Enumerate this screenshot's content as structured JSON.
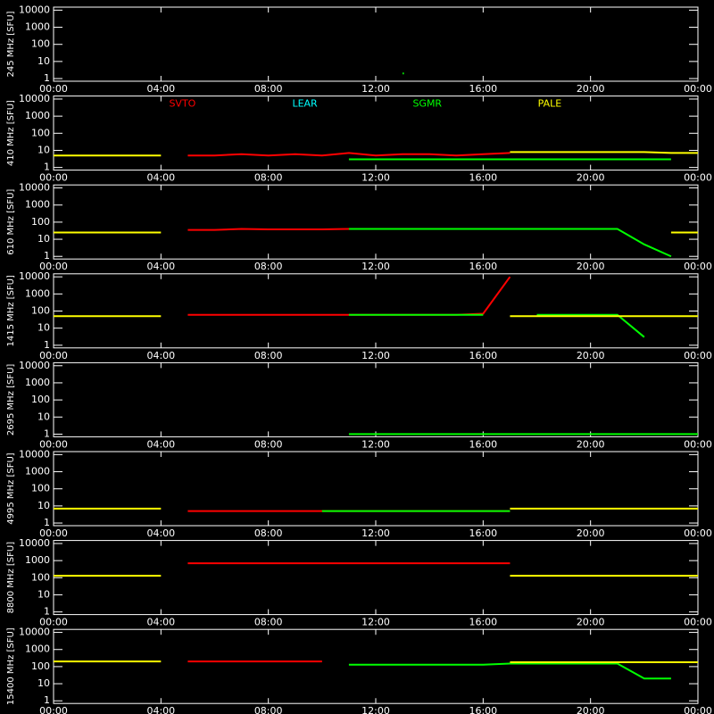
{
  "chart_data": [
    {
      "type": "line",
      "ylabel": "245 MHz [SFU]",
      "ylog": true,
      "ylim": [
        0.7,
        15000
      ],
      "yticks": [
        1,
        10,
        100,
        1000,
        10000
      ],
      "xlim": [
        0,
        24
      ],
      "xticks": [
        {
          "value": 0,
          "label": "00:00"
        },
        {
          "value": 4,
          "label": "04:00"
        },
        {
          "value": 8,
          "label": "08:00"
        },
        {
          "value": 12,
          "label": "12:00"
        },
        {
          "value": 16,
          "label": "16:00"
        },
        {
          "value": 20,
          "label": "20:00"
        },
        {
          "value": 24,
          "label": "00:00"
        }
      ],
      "x": [
        0,
        1,
        2,
        3,
        4,
        5,
        6,
        7,
        8,
        9,
        10,
        11,
        12,
        13,
        14,
        15,
        16,
        17,
        18,
        19,
        20,
        21,
        22,
        23,
        24
      ],
      "series": [
        {
          "color": "#00ff00",
          "values": [
            null,
            null,
            null,
            null,
            null,
            null,
            null,
            null,
            null,
            null,
            null,
            null,
            null,
            2,
            null,
            null,
            null,
            null,
            null,
            null,
            null,
            null,
            null,
            null,
            null
          ]
        }
      ]
    },
    {
      "type": "line",
      "ylabel": "410 MHz [SFU]",
      "ylog": true,
      "ylim": [
        0.7,
        15000
      ],
      "yticks": [
        1,
        10,
        100,
        1000,
        10000
      ],
      "xlim": [
        0,
        24
      ],
      "xticks": [
        {
          "value": 0,
          "label": "00:00"
        },
        {
          "value": 4,
          "label": "04:00"
        },
        {
          "value": 8,
          "label": "08:00"
        },
        {
          "value": 12,
          "label": "12:00"
        },
        {
          "value": 16,
          "label": "16:00"
        },
        {
          "value": 20,
          "label": "20:00"
        },
        {
          "value": 24,
          "label": "00:00"
        }
      ],
      "x": [
        0,
        1,
        2,
        3,
        4,
        5,
        6,
        7,
        8,
        9,
        10,
        11,
        12,
        13,
        14,
        15,
        16,
        17,
        18,
        19,
        20,
        21,
        22,
        23,
        24
      ],
      "series": [
        {
          "name": "SVTO",
          "color": "#ff0000",
          "values": [
            null,
            null,
            null,
            null,
            null,
            5,
            5,
            6,
            5,
            6,
            5,
            7,
            5,
            6,
            6,
            5,
            6,
            7,
            null,
            null,
            null,
            null,
            null,
            null,
            null
          ]
        },
        {
          "name": "LEAR",
          "color": "#00ffff",
          "values": [
            null,
            null,
            null,
            null,
            null,
            null,
            null,
            null,
            null,
            null,
            null,
            null,
            null,
            null,
            null,
            null,
            null,
            null,
            null,
            null,
            null,
            null,
            null,
            null,
            null
          ]
        },
        {
          "name": "SGMR",
          "color": "#00ff00",
          "values": [
            null,
            null,
            null,
            null,
            null,
            null,
            null,
            null,
            null,
            null,
            null,
            3,
            3,
            3,
            3,
            3,
            3,
            3,
            3,
            3,
            3,
            3,
            3,
            3,
            null
          ]
        },
        {
          "name": "PALE",
          "color": "#ffff00",
          "values": [
            5,
            5,
            5,
            5,
            5,
            null,
            null,
            null,
            null,
            null,
            null,
            null,
            null,
            null,
            null,
            null,
            null,
            8,
            8,
            8,
            8,
            8,
            8,
            7,
            7
          ]
        }
      ]
    },
    {
      "type": "line",
      "ylabel": "610 MHz [SFU]",
      "ylog": true,
      "ylim": [
        0.7,
        15000
      ],
      "yticks": [
        1,
        10,
        100,
        1000,
        10000
      ],
      "xlim": [
        0,
        24
      ],
      "xticks": [
        {
          "value": 0,
          "label": "00:00"
        },
        {
          "value": 4,
          "label": "04:00"
        },
        {
          "value": 8,
          "label": "08:00"
        },
        {
          "value": 12,
          "label": "12:00"
        },
        {
          "value": 16,
          "label": "16:00"
        },
        {
          "value": 20,
          "label": "20:00"
        },
        {
          "value": 24,
          "label": "00:00"
        }
      ],
      "x": [
        0,
        1,
        2,
        3,
        4,
        5,
        6,
        7,
        8,
        9,
        10,
        11,
        12,
        13,
        14,
        15,
        16,
        17,
        18,
        19,
        20,
        21,
        22,
        23,
        24
      ],
      "series": [
        {
          "color": "#ff0000",
          "values": [
            null,
            null,
            null,
            null,
            null,
            35,
            35,
            40,
            38,
            38,
            38,
            40,
            40,
            40,
            40,
            40,
            40,
            40,
            null,
            null,
            null,
            null,
            null,
            null,
            null
          ]
        },
        {
          "color": "#00ff00",
          "values": [
            null,
            null,
            null,
            null,
            null,
            null,
            null,
            null,
            null,
            null,
            null,
            40,
            40,
            40,
            40,
            40,
            40,
            40,
            40,
            40,
            40,
            40,
            5,
            1,
            null
          ]
        },
        {
          "color": "#ffff00",
          "values": [
            25,
            25,
            25,
            25,
            25,
            null,
            null,
            null,
            null,
            null,
            null,
            null,
            null,
            null,
            null,
            null,
            null,
            null,
            null,
            null,
            null,
            null,
            null,
            25,
            25
          ]
        }
      ]
    },
    {
      "type": "line",
      "ylabel": "1415 MHz [SFU]",
      "ylog": true,
      "ylim": [
        0.7,
        15000
      ],
      "yticks": [
        1,
        10,
        100,
        1000,
        10000
      ],
      "xlim": [
        0,
        24
      ],
      "xticks": [
        {
          "value": 0,
          "label": "00:00"
        },
        {
          "value": 4,
          "label": "04:00"
        },
        {
          "value": 8,
          "label": "08:00"
        },
        {
          "value": 12,
          "label": "12:00"
        },
        {
          "value": 16,
          "label": "16:00"
        },
        {
          "value": 20,
          "label": "20:00"
        },
        {
          "value": 24,
          "label": "00:00"
        }
      ],
      "x": [
        0,
        1,
        2,
        3,
        4,
        5,
        6,
        7,
        8,
        9,
        10,
        11,
        12,
        13,
        14,
        15,
        16,
        17,
        18,
        19,
        20,
        21,
        22,
        23,
        24
      ],
      "series": [
        {
          "color": "#ff0000",
          "values": [
            null,
            null,
            null,
            null,
            null,
            60,
            60,
            60,
            60,
            60,
            60,
            60,
            60,
            60,
            60,
            60,
            70,
            10000,
            null,
            null,
            null,
            null,
            null,
            null,
            null
          ]
        },
        {
          "color": "#00ff00",
          "values": [
            null,
            null,
            null,
            null,
            null,
            null,
            null,
            null,
            null,
            null,
            null,
            60,
            60,
            60,
            60,
            60,
            60,
            null,
            60,
            60,
            60,
            60,
            3,
            null,
            null
          ]
        },
        {
          "color": "#ffff00",
          "values": [
            50,
            50,
            50,
            50,
            50,
            null,
            null,
            null,
            null,
            null,
            null,
            null,
            null,
            null,
            null,
            null,
            null,
            50,
            50,
            50,
            50,
            50,
            50,
            50,
            50
          ]
        }
      ]
    },
    {
      "type": "line",
      "ylabel": "2695 MHz [SFU]",
      "ylog": true,
      "ylim": [
        0.7,
        15000
      ],
      "yticks": [
        1,
        10,
        100,
        1000,
        10000
      ],
      "xlim": [
        0,
        24
      ],
      "xticks": [
        {
          "value": 0,
          "label": "00:00"
        },
        {
          "value": 4,
          "label": "04:00"
        },
        {
          "value": 8,
          "label": "08:00"
        },
        {
          "value": 12,
          "label": "12:00"
        },
        {
          "value": 16,
          "label": "16:00"
        },
        {
          "value": 20,
          "label": "20:00"
        },
        {
          "value": 24,
          "label": "00:00"
        }
      ],
      "x": [
        0,
        1,
        2,
        3,
        4,
        5,
        6,
        7,
        8,
        9,
        10,
        11,
        12,
        13,
        14,
        15,
        16,
        17,
        18,
        19,
        20,
        21,
        22,
        23,
        24
      ],
      "series": [
        {
          "color": "#00ff00",
          "values": [
            null,
            null,
            null,
            null,
            null,
            null,
            null,
            null,
            null,
            null,
            null,
            1,
            1,
            1,
            1,
            1,
            1,
            1,
            1,
            1,
            1,
            1,
            1,
            1,
            1
          ]
        }
      ]
    },
    {
      "type": "line",
      "ylabel": "4995 MHz [SFU]",
      "ylog": true,
      "ylim": [
        0.7,
        15000
      ],
      "yticks": [
        1,
        10,
        100,
        1000,
        10000
      ],
      "xlim": [
        0,
        24
      ],
      "xticks": [
        {
          "value": 0,
          "label": "00:00"
        },
        {
          "value": 4,
          "label": "04:00"
        },
        {
          "value": 8,
          "label": "08:00"
        },
        {
          "value": 12,
          "label": "12:00"
        },
        {
          "value": 16,
          "label": "16:00"
        },
        {
          "value": 20,
          "label": "20:00"
        },
        {
          "value": 24,
          "label": "00:00"
        }
      ],
      "x": [
        0,
        1,
        2,
        3,
        4,
        5,
        6,
        7,
        8,
        9,
        10,
        11,
        12,
        13,
        14,
        15,
        16,
        17,
        18,
        19,
        20,
        21,
        22,
        23,
        24
      ],
      "series": [
        {
          "color": "#ff0000",
          "values": [
            null,
            null,
            null,
            null,
            null,
            5,
            5,
            5,
            5,
            5,
            5,
            5,
            5,
            5,
            5,
            5,
            5,
            5,
            null,
            null,
            null,
            null,
            null,
            null,
            null
          ]
        },
        {
          "color": "#00ff00",
          "values": [
            null,
            null,
            null,
            null,
            null,
            null,
            null,
            null,
            null,
            null,
            5,
            5,
            5,
            5,
            5,
            5,
            5,
            5,
            null,
            null,
            null,
            null,
            null,
            null,
            null
          ]
        },
        {
          "color": "#ffff00",
          "values": [
            7,
            7,
            7,
            7,
            7,
            null,
            null,
            null,
            null,
            null,
            null,
            null,
            null,
            null,
            null,
            null,
            null,
            7,
            7,
            7,
            7,
            7,
            7,
            7,
            7
          ]
        }
      ]
    },
    {
      "type": "line",
      "ylabel": "8800 MHz [SFU]",
      "ylog": true,
      "ylim": [
        0.7,
        15000
      ],
      "yticks": [
        1,
        10,
        100,
        1000,
        10000
      ],
      "xlim": [
        0,
        24
      ],
      "xticks": [
        {
          "value": 0,
          "label": "00:00"
        },
        {
          "value": 4,
          "label": "04:00"
        },
        {
          "value": 8,
          "label": "08:00"
        },
        {
          "value": 12,
          "label": "12:00"
        },
        {
          "value": 16,
          "label": "16:00"
        },
        {
          "value": 20,
          "label": "20:00"
        },
        {
          "value": 24,
          "label": "00:00"
        }
      ],
      "x": [
        0,
        1,
        2,
        3,
        4,
        5,
        6,
        7,
        8,
        9,
        10,
        11,
        12,
        13,
        14,
        15,
        16,
        17,
        18,
        19,
        20,
        21,
        22,
        23,
        24
      ],
      "series": [
        {
          "color": "#ff0000",
          "values": [
            null,
            null,
            null,
            null,
            null,
            700,
            700,
            700,
            700,
            700,
            700,
            700,
            700,
            700,
            700,
            700,
            700,
            700,
            null,
            null,
            null,
            null,
            null,
            null,
            null
          ]
        },
        {
          "color": "#ffff00",
          "values": [
            130,
            130,
            130,
            130,
            130,
            null,
            null,
            null,
            null,
            null,
            null,
            null,
            null,
            null,
            null,
            null,
            null,
            130,
            130,
            130,
            130,
            130,
            130,
            130,
            130
          ]
        }
      ]
    },
    {
      "type": "line",
      "ylabel": "15400 MHz [SFU]",
      "ylog": true,
      "ylim": [
        0.7,
        15000
      ],
      "yticks": [
        1,
        10,
        100,
        1000,
        10000
      ],
      "xlim": [
        0,
        24
      ],
      "xticks": [
        {
          "value": 0,
          "label": "00:00"
        },
        {
          "value": 4,
          "label": "04:00"
        },
        {
          "value": 8,
          "label": "08:00"
        },
        {
          "value": 12,
          "label": "12:00"
        },
        {
          "value": 16,
          "label": "16:00"
        },
        {
          "value": 20,
          "label": "20:00"
        },
        {
          "value": 24,
          "label": "00:00"
        }
      ],
      "x": [
        0,
        1,
        2,
        3,
        4,
        5,
        6,
        7,
        8,
        9,
        10,
        11,
        12,
        13,
        14,
        15,
        16,
        17,
        18,
        19,
        20,
        21,
        22,
        23,
        24
      ],
      "series": [
        {
          "color": "#ff0000",
          "values": [
            null,
            null,
            null,
            null,
            null,
            200,
            200,
            200,
            200,
            200,
            200,
            null,
            null,
            null,
            null,
            null,
            null,
            null,
            null,
            null,
            null,
            null,
            null,
            null,
            null
          ]
        },
        {
          "color": "#00ff00",
          "values": [
            null,
            null,
            null,
            null,
            null,
            null,
            null,
            null,
            null,
            null,
            null,
            130,
            130,
            130,
            130,
            130,
            130,
            150,
            150,
            150,
            150,
            150,
            20,
            20,
            null
          ]
        },
        {
          "color": "#ffff00",
          "values": [
            200,
            200,
            200,
            200,
            200,
            null,
            null,
            null,
            null,
            null,
            null,
            null,
            null,
            null,
            null,
            null,
            null,
            180,
            180,
            180,
            180,
            180,
            180,
            180,
            180
          ]
        }
      ]
    }
  ]
}
